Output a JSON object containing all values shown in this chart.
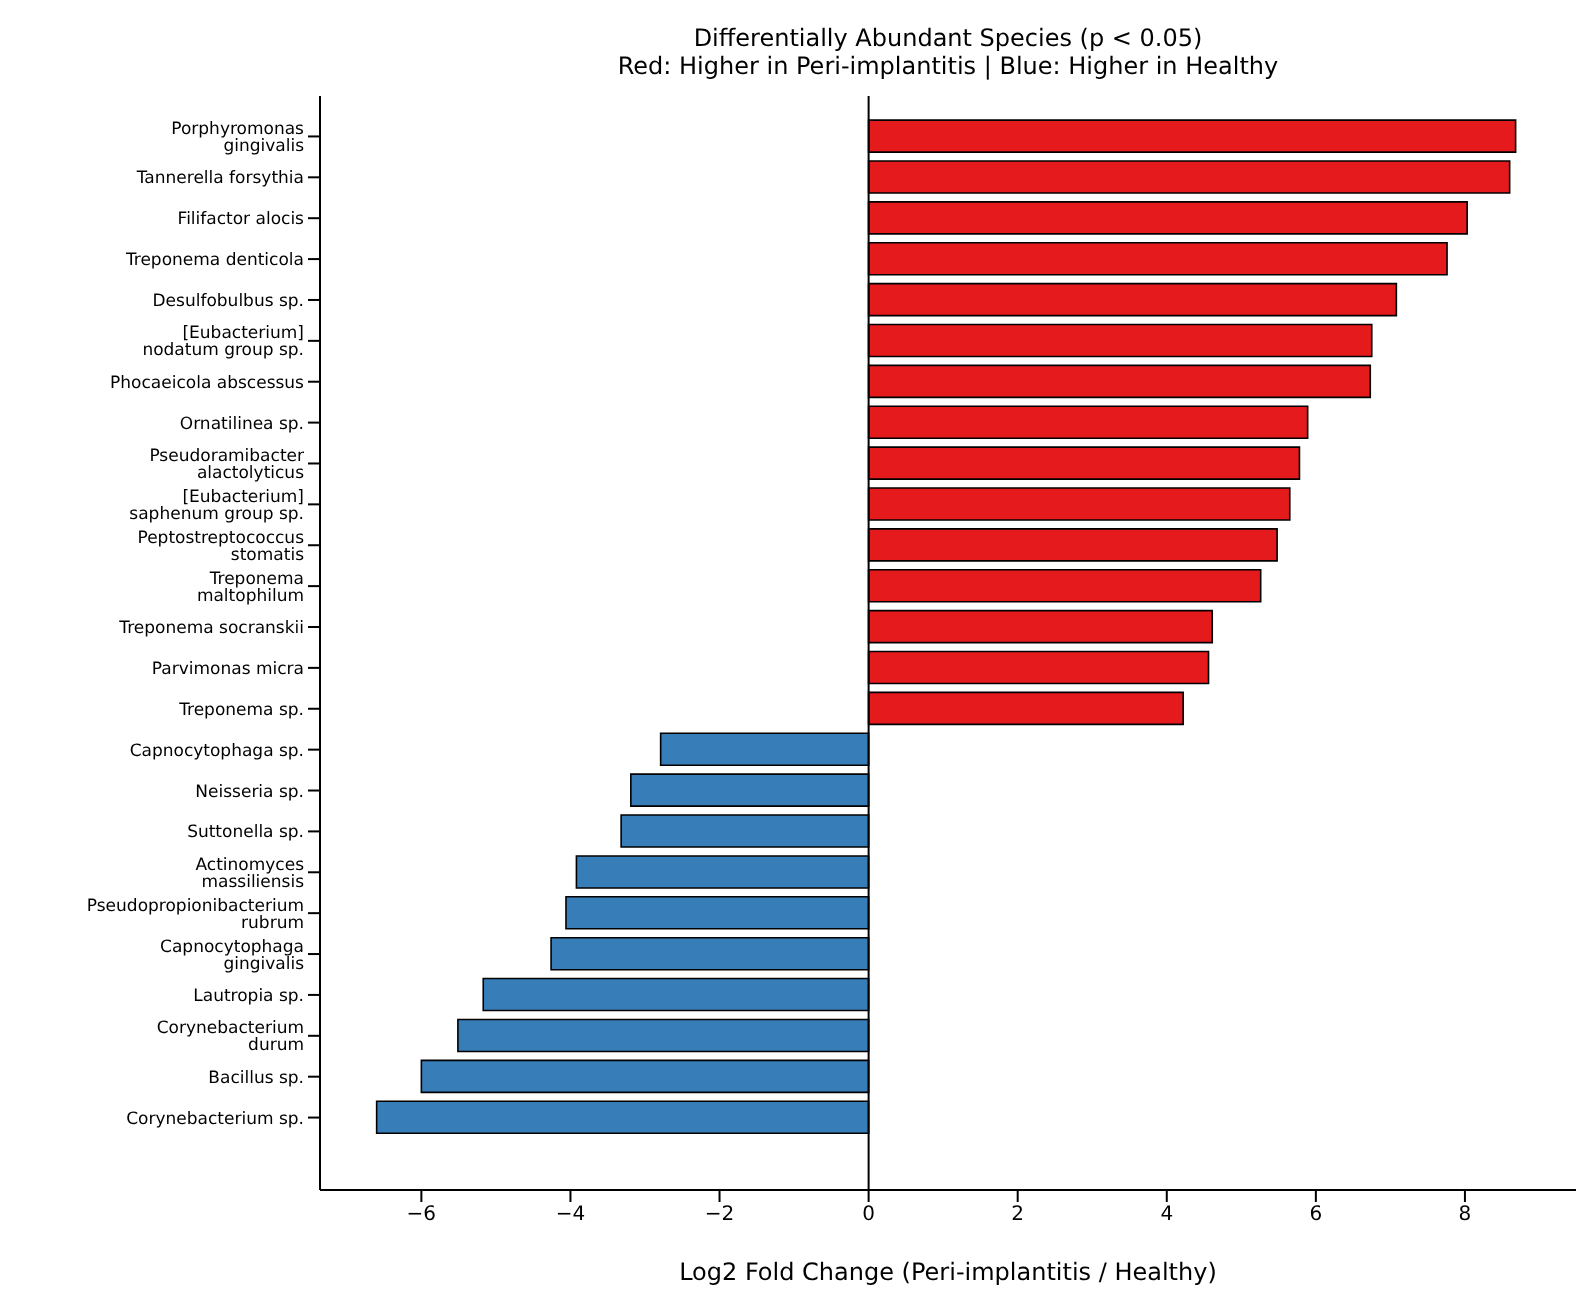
{
  "chart_data": {
    "type": "bar",
    "orientation": "horizontal",
    "title": "Differentially Abundant Species (p < 0.05)",
    "subtitle": "Red: Higher in Peri-implantitis | Blue: Higher in Healthy",
    "xlabel": "Log2 Fold Change (Peri-implantitis / Healthy)",
    "categories": [
      "Porphyromonas gingivalis",
      "Tannerella forsythia",
      "Filifactor alocis",
      "Treponema denticola",
      "Desulfobulbus sp.",
      "[Eubacterium] nodatum group sp.",
      "Phocaeicola abscessus",
      "Ornatilinea sp.",
      "Pseudoramibacter alactolyticus",
      "[Eubacterium] saphenum group sp.",
      "Peptostreptococcus stomatis",
      "Treponema maltophilum",
      "Treponema socranskii",
      "Parvimonas micra",
      "Treponema sp.",
      "Capnocytophaga sp.",
      "Neisseria sp.",
      "Suttonella sp.",
      "Actinomyces massiliensis",
      "Pseudopropionibacterium rubrum",
      "Capnocytophaga gingivalis",
      "Lautropia sp.",
      "Corynebacterium durum",
      "Bacillus sp.",
      "Corynebacterium sp."
    ],
    "values": [
      8.68,
      8.6,
      8.03,
      7.76,
      7.08,
      6.75,
      6.73,
      5.89,
      5.78,
      5.65,
      5.48,
      5.26,
      4.61,
      4.56,
      4.22,
      -2.79,
      -3.19,
      -3.32,
      -3.92,
      -4.06,
      -4.26,
      -5.17,
      -5.51,
      -6.0,
      -6.6
    ],
    "colors": [
      "#e41a1c",
      "#e41a1c",
      "#e41a1c",
      "#e41a1c",
      "#e41a1c",
      "#e41a1c",
      "#e41a1c",
      "#e41a1c",
      "#e41a1c",
      "#e41a1c",
      "#e41a1c",
      "#e41a1c",
      "#e41a1c",
      "#e41a1c",
      "#e41a1c",
      "#377eb8",
      "#377eb8",
      "#377eb8",
      "#377eb8",
      "#377eb8",
      "#377eb8",
      "#377eb8",
      "#377eb8",
      "#377eb8",
      "#377eb8"
    ],
    "xlim": [
      -7.36,
      9.49
    ],
    "xticks": [
      {
        "value": -6,
        "label": "−6"
      },
      {
        "value": -4,
        "label": "−4"
      },
      {
        "value": -2,
        "label": "−2"
      },
      0,
      2,
      4,
      6,
      8
    ],
    "ref_lines": [
      {
        "axis": "x",
        "value": 0,
        "label": null,
        "color": "#000000"
      }
    ],
    "grid": false,
    "legend": false
  }
}
